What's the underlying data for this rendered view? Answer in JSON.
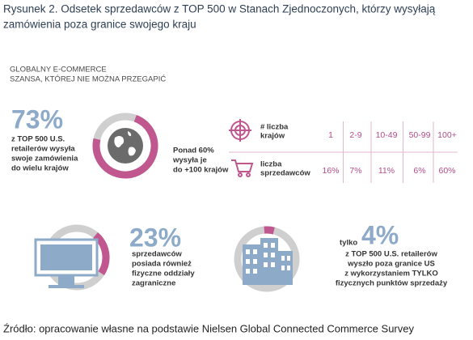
{
  "title": [
    "Rysunek 2. Odsetek sprzedawców z TOP 500 w Stanach Zjednoczonych, którzy wysyłają",
    "zamówienia poza granice swojego kraju"
  ],
  "header": [
    "GLOBALNY E-COMMERCE",
    "SZANSA, KTÓREJ NIE MOŻNA PRZEGAPIĆ"
  ],
  "stat1": {
    "number": "73%",
    "text": [
      "z TOP 500 U.S.",
      "retailerów wysyła",
      "swoje zamówienia",
      "do wielu krajów"
    ]
  },
  "stat2": {
    "text": [
      "Ponad 60%",
      "wysyła je",
      "do +100 krajów"
    ]
  },
  "table": {
    "row_labels": [
      [
        "# liczba",
        "krajów"
      ],
      [
        "liczba",
        "sprzedawców"
      ]
    ],
    "columns": [
      "1",
      "2-9",
      "10-49",
      "50-99",
      "100+"
    ],
    "values": [
      "16%",
      "7%",
      "11%",
      "6%",
      "60%"
    ]
  },
  "stat3": {
    "number": "23%",
    "text": [
      "sprzedawców",
      "posiada również",
      "fizyczne oddziały",
      "zagraniczne"
    ]
  },
  "stat4": {
    "prefix": "tylko",
    "number": "4%",
    "text": [
      "z TOP 500 U.S. retailerów",
      "wyszło poza granice US",
      "z wykorzystaniem TYLKO",
      "fizycznych punktów sprzedaży"
    ]
  },
  "source": "Źródło: opracowanie własne na podstawie Nielsen Global Connected Commerce Survey"
}
